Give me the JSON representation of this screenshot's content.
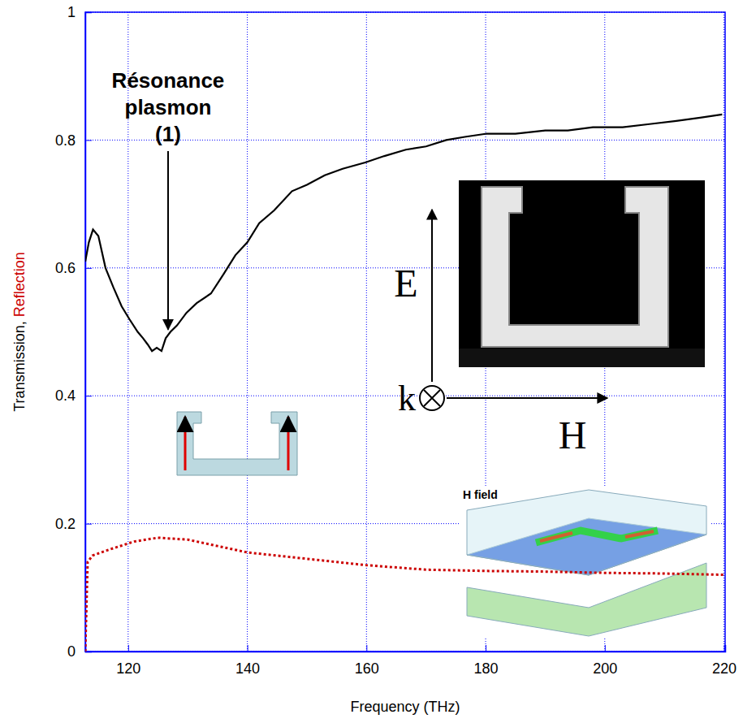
{
  "chart_data": {
    "type": "line",
    "xlabel": "Frequency (THz)",
    "ylabel": "Transmission, Reflection",
    "xlim": [
      112.8,
      220.2
    ],
    "ylim": [
      0,
      1
    ],
    "xticks": [
      120,
      140,
      160,
      180,
      200,
      220
    ],
    "yticks": [
      0,
      0.2,
      0.4,
      0.6,
      0.8,
      1
    ],
    "grid": true,
    "series": [
      {
        "name": "Transmission",
        "color": "#000000",
        "line_style": "solid",
        "x": [
          112.8,
          113.4,
          114.1,
          115.0,
          116.2,
          117.5,
          118.9,
          120.2,
          121.6,
          122.5,
          123.3,
          124.0,
          124.8,
          125.6,
          126.3,
          127.1,
          128.2,
          129.8,
          131.5,
          133.9,
          136.0,
          138.0,
          140.0,
          142.0,
          144.5,
          147.5,
          150.0,
          153.0,
          156.0,
          159.8,
          163.0,
          166.6,
          170.0,
          173.4,
          176.5,
          180.2,
          185.0,
          190.0,
          193.8,
          198.0,
          203.0,
          207.5,
          212.0,
          216.0,
          219.7
        ],
        "values": [
          0.61,
          0.64,
          0.66,
          0.65,
          0.6,
          0.57,
          0.54,
          0.52,
          0.5,
          0.49,
          0.48,
          0.47,
          0.475,
          0.47,
          0.49,
          0.5,
          0.51,
          0.53,
          0.545,
          0.56,
          0.59,
          0.62,
          0.64,
          0.67,
          0.69,
          0.72,
          0.73,
          0.745,
          0.755,
          0.765,
          0.775,
          0.785,
          0.79,
          0.8,
          0.805,
          0.81,
          0.81,
          0.815,
          0.815,
          0.82,
          0.82,
          0.825,
          0.83,
          0.835,
          0.84
        ]
      },
      {
        "name": "Reflection",
        "color": "#cc0000",
        "line_style": "dotted",
        "x": [
          112.8,
          113.2,
          114.0,
          117.0,
          121.0,
          125.0,
          130.0,
          135.0,
          140.0,
          150.0,
          160.0,
          170.0,
          180.0,
          190.0,
          200.0,
          210.0,
          220.0
        ],
        "values": [
          0,
          0.14,
          0.15,
          0.16,
          0.172,
          0.178,
          0.175,
          0.165,
          0.155,
          0.145,
          0.135,
          0.128,
          0.126,
          0.125,
          0.123,
          0.122,
          0.12
        ]
      }
    ],
    "annotations": [
      {
        "text": "Résonance plasmon (1)",
        "x": 126.7,
        "y": 0.5
      },
      {
        "text": "E"
      },
      {
        "text": "k"
      },
      {
        "text": "H"
      },
      {
        "text": "H field"
      }
    ]
  }
}
